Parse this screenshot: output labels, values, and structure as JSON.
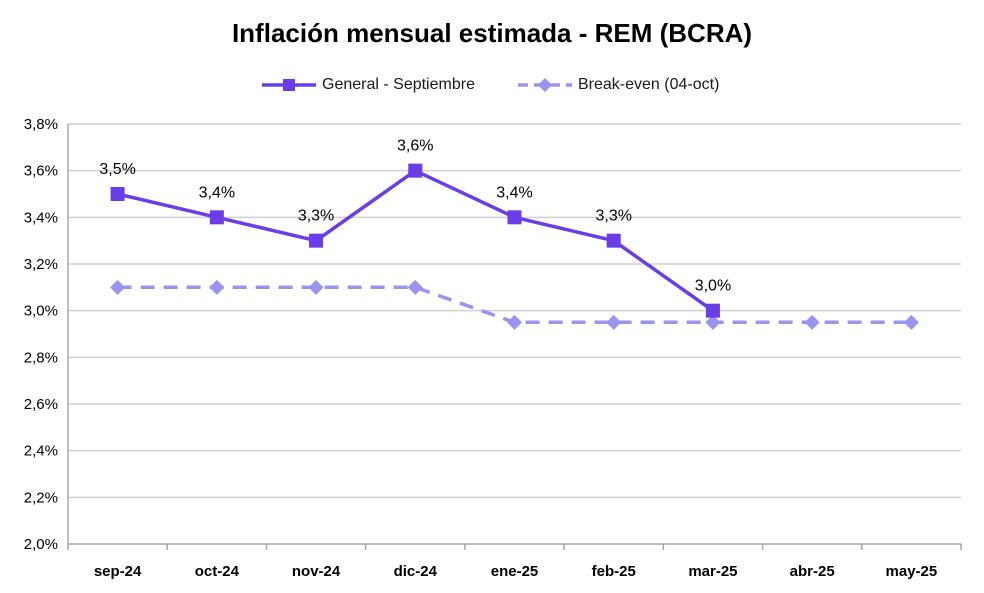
{
  "chart_data": {
    "type": "line",
    "title": "Inflación mensual estimada - REM (BCRA)",
    "categories": [
      "sep-24",
      "oct-24",
      "nov-24",
      "dic-24",
      "ene-25",
      "feb-25",
      "mar-25",
      "abr-25",
      "may-25"
    ],
    "ylim": [
      2.0,
      3.8
    ],
    "yticks": [
      "2,0%",
      "2,2%",
      "2,4%",
      "2,6%",
      "2,8%",
      "3,0%",
      "3,2%",
      "3,4%",
      "3,6%",
      "3,8%"
    ],
    "ytick_values": [
      2.0,
      2.2,
      2.4,
      2.6,
      2.8,
      3.0,
      3.2,
      3.4,
      3.6,
      3.8
    ],
    "grid": true,
    "legend_position": "top",
    "series": [
      {
        "name": "General - Septiembre",
        "color": "#6a3de8",
        "style": "solid",
        "marker": "square",
        "values": [
          3.5,
          3.4,
          3.3,
          3.6,
          3.4,
          3.3,
          3.0,
          null,
          null
        ],
        "labels": [
          "3,5%",
          "3,4%",
          "3,3%",
          "3,6%",
          "3,4%",
          "3,3%",
          "3,0%",
          null,
          null
        ]
      },
      {
        "name": "Break-even (04-oct)",
        "color": "#9b93f0",
        "style": "dashed",
        "marker": "diamond",
        "values": [
          3.1,
          3.1,
          3.1,
          3.1,
          2.95,
          2.95,
          2.95,
          2.95,
          2.95
        ]
      }
    ]
  }
}
